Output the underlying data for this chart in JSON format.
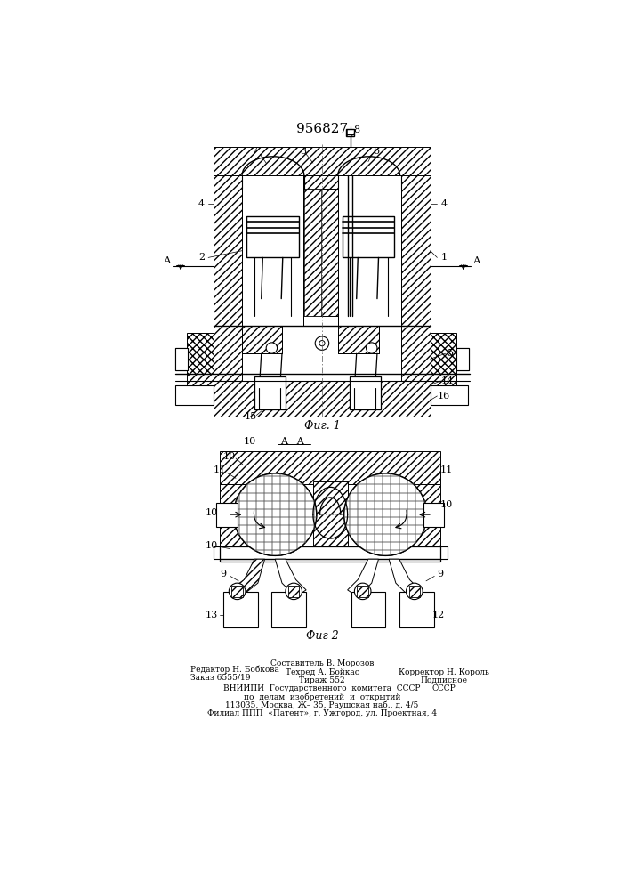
{
  "title_number": "956827",
  "background_color": "#ffffff",
  "line_color": "#000000",
  "fig1_caption": "Фиг. 1",
  "fig2_caption": "Фиг 2",
  "bottom_text_col1_line1": "Редактор Н. Бобкова",
  "bottom_text_col1_line2": "Заказ 6555/19",
  "bottom_text_col2_line1": "Составитель В. Морозов",
  "bottom_text_col2_line2": "Техред А. Бойкас",
  "bottom_text_col2_line3": "Тираж 552",
  "bottom_text_col3_line1": "Корректор Н. Король",
  "bottom_text_col3_line2": "Подписное",
  "bottom_text_col3_line3": "СССР",
  "bottom_text_vniip1": "ВНИИПИ  Государственного  комитета  СССР",
  "bottom_text_vniip2": "по  делам  изобретений  и  открытий",
  "bottom_text_vniip3": "113035, Москва, Ж– 35, Раушская наб., д. 4/5",
  "bottom_text_vniip4": "Филиал ППП  «Патент», г. Ужгород, ул. Проектная, 4"
}
